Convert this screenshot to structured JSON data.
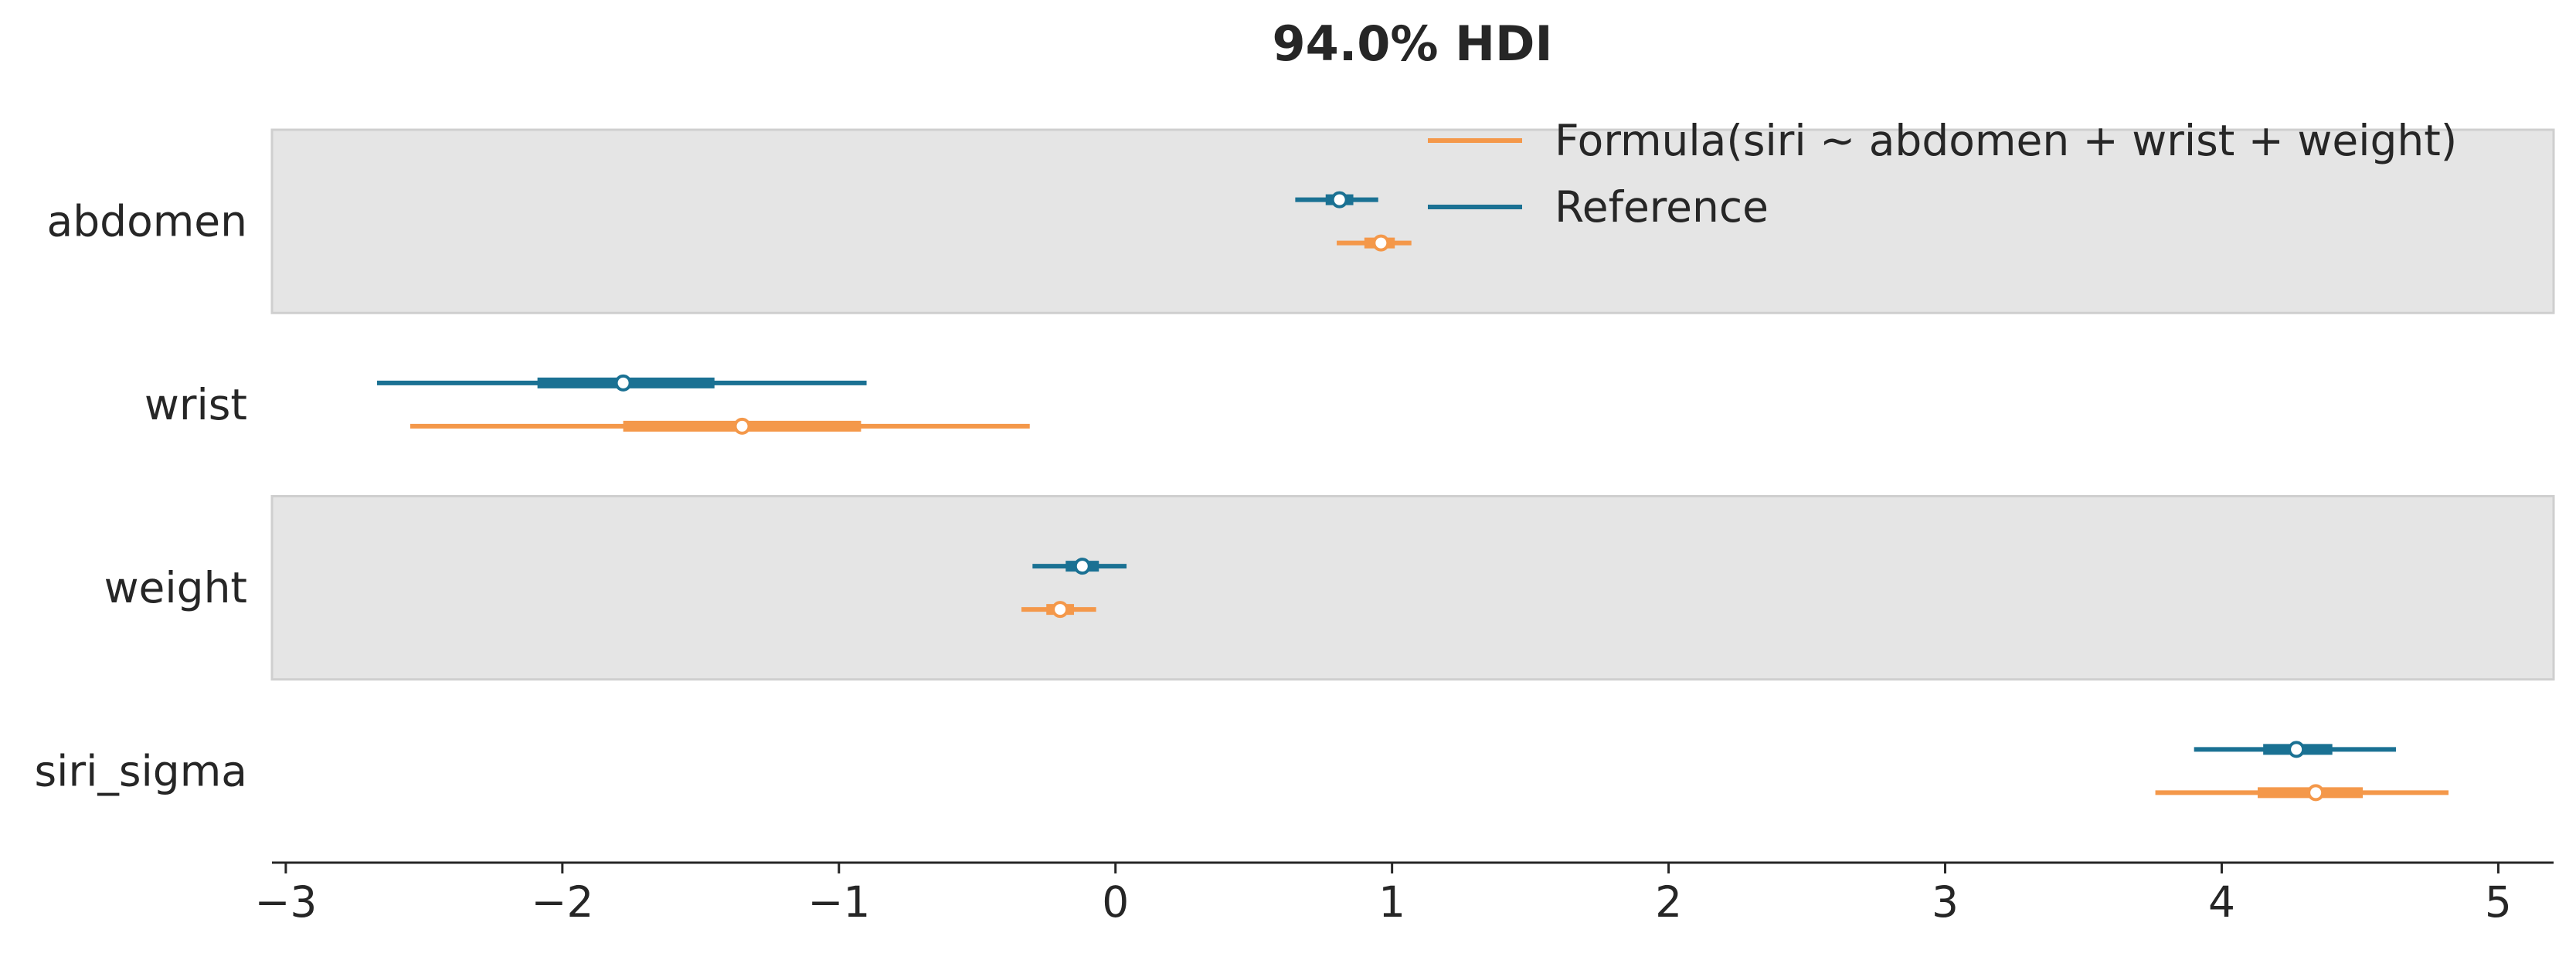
{
  "chart_data": {
    "type": "forest",
    "title": "94.0% HDI",
    "xlim": [
      -3.05,
      5.2
    ],
    "xticks": [
      -3,
      -2,
      -1,
      0,
      1,
      2,
      3,
      4,
      5
    ],
    "xtick_labels": [
      "−3",
      "−2",
      "−1",
      "0",
      "1",
      "2",
      "3",
      "4",
      "5"
    ],
    "grid": false,
    "legend_position": "top-right",
    "band_fill": "#e5e5e5",
    "variables": [
      "abdomen",
      "wrist",
      "weight",
      "siri_sigma"
    ],
    "series": [
      {
        "name": "Reference",
        "color": "#1a7193",
        "estimates": [
          {
            "var": "abdomen",
            "mean": 0.81,
            "hdi_94": [
              0.65,
              0.95
            ],
            "iqr": [
              0.76,
              0.86
            ]
          },
          {
            "var": "wrist",
            "mean": -1.78,
            "hdi_94": [
              -2.67,
              -0.9
            ],
            "iqr": [
              -2.09,
              -1.45
            ]
          },
          {
            "var": "weight",
            "mean": -0.12,
            "hdi_94": [
              -0.3,
              0.04
            ],
            "iqr": [
              -0.18,
              -0.06
            ]
          },
          {
            "var": "siri_sigma",
            "mean": 4.27,
            "hdi_94": [
              3.9,
              4.63
            ],
            "iqr": [
              4.15,
              4.4
            ]
          }
        ]
      },
      {
        "name": "Formula(siri ~ abdomen + wrist + weight)",
        "color": "#f4984a",
        "estimates": [
          {
            "var": "abdomen",
            "mean": 0.96,
            "hdi_94": [
              0.8,
              1.07
            ],
            "iqr": [
              0.9,
              1.01
            ]
          },
          {
            "var": "wrist",
            "mean": -1.35,
            "hdi_94": [
              -2.55,
              -0.31
            ],
            "iqr": [
              -1.78,
              -0.92
            ]
          },
          {
            "var": "weight",
            "mean": -0.2,
            "hdi_94": [
              -0.34,
              -0.07
            ],
            "iqr": [
              -0.25,
              -0.15
            ]
          },
          {
            "var": "siri_sigma",
            "mean": 4.34,
            "hdi_94": [
              3.76,
              4.82
            ],
            "iqr": [
              4.13,
              4.51
            ]
          }
        ]
      }
    ]
  }
}
